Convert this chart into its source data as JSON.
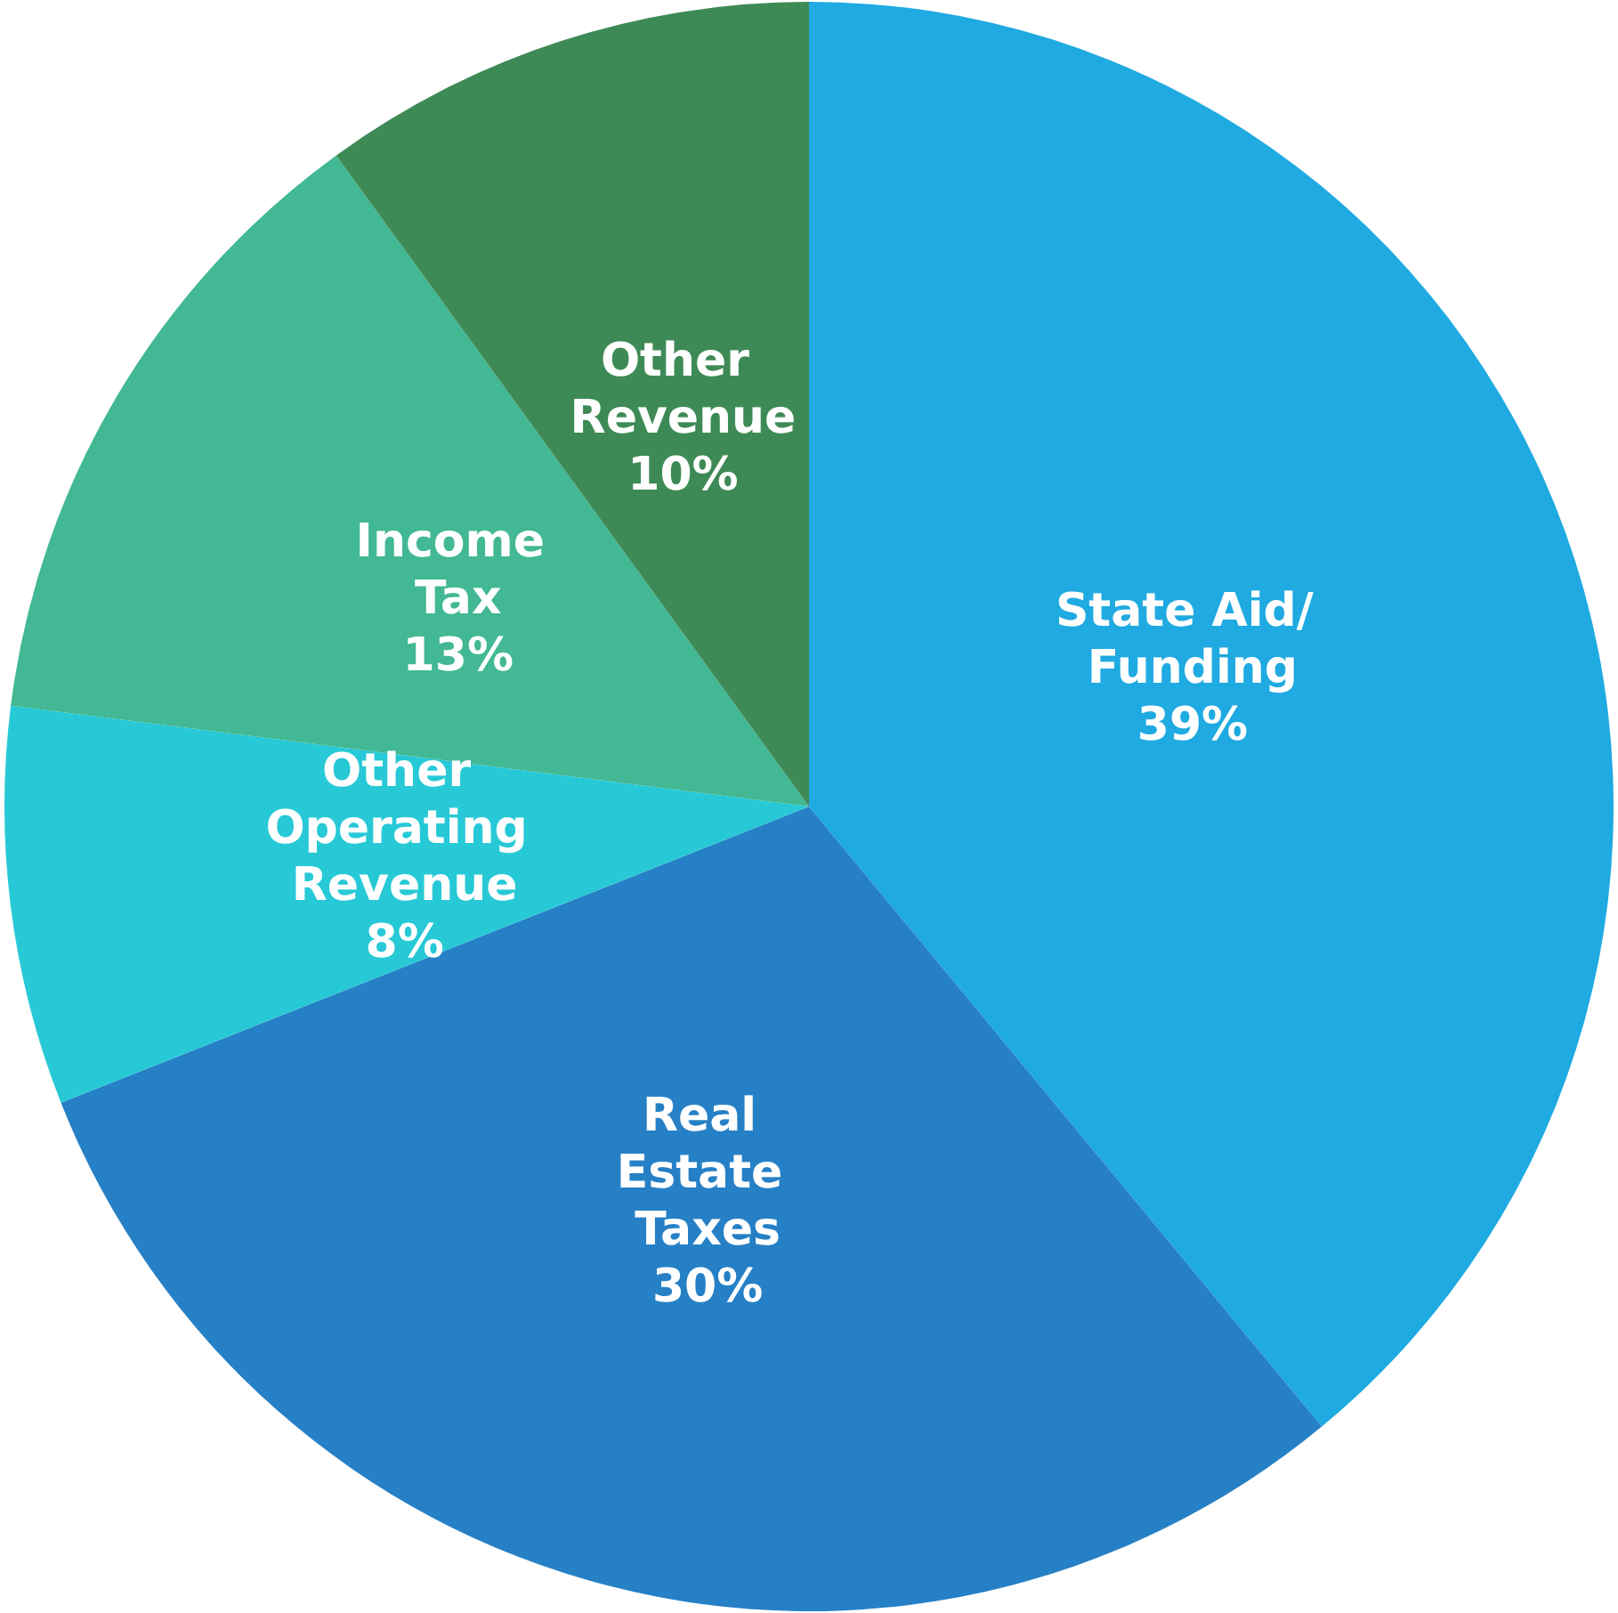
{
  "chart_data": {
    "type": "pie",
    "categories": [
      "State Aid/ Funding",
      "Real Estate Taxes",
      "Other Operating Revenue",
      "Income Tax",
      "Other Revenue"
    ],
    "values": [
      39,
      30,
      8,
      13,
      10
    ],
    "colors": [
      "#1faae1",
      "#2680c6",
      "#27c9d6",
      "#42b894",
      "#3e8a56"
    ],
    "value_labels": [
      "39%",
      "30%",
      "8%",
      "13%",
      "10%"
    ],
    "legend": false
  }
}
